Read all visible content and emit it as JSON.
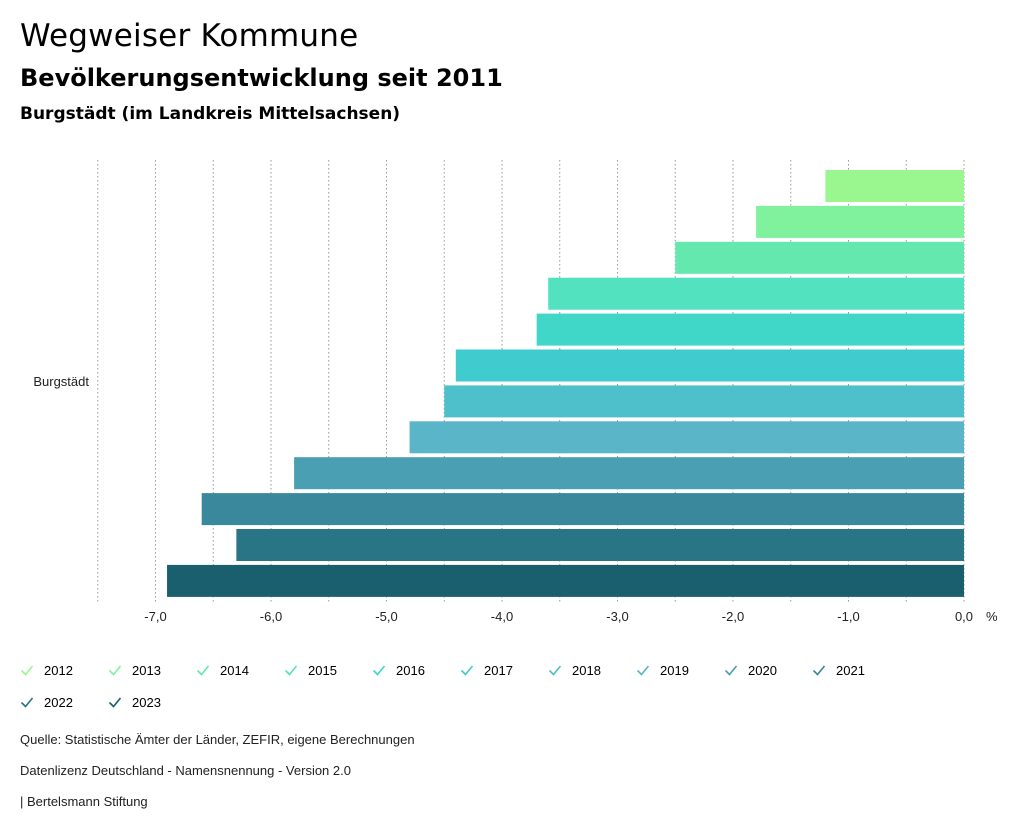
{
  "header": {
    "title": "Wegweiser Kommune",
    "subtitle": "Bevölkerungsentwicklung seit 2011",
    "region": "Burgstädt (im Landkreis Mittelsachsen)"
  },
  "chart_data": {
    "type": "bar",
    "orientation": "horizontal",
    "categories": [
      "Burgstädt"
    ],
    "series": [
      {
        "name": "2012",
        "values": [
          -1.2
        ],
        "color": "#9af78f"
      },
      {
        "name": "2013",
        "values": [
          -1.8
        ],
        "color": "#80f29d"
      },
      {
        "name": "2014",
        "values": [
          -2.5
        ],
        "color": "#64e8ad"
      },
      {
        "name": "2015",
        "values": [
          -3.6
        ],
        "color": "#52e2c0"
      },
      {
        "name": "2016",
        "values": [
          -3.7
        ],
        "color": "#40d7c8"
      },
      {
        "name": "2017",
        "values": [
          -4.4
        ],
        "color": "#40ccce"
      },
      {
        "name": "2018",
        "values": [
          -4.5
        ],
        "color": "#4dc0cc"
      },
      {
        "name": "2019",
        "values": [
          -4.8
        ],
        "color": "#5ab5c8"
      },
      {
        "name": "2020",
        "values": [
          -5.8
        ],
        "color": "#4a9fb3"
      },
      {
        "name": "2021",
        "values": [
          -6.6
        ],
        "color": "#3a889c"
      },
      {
        "name": "2022",
        "values": [
          -6.3
        ],
        "color": "#297585"
      },
      {
        "name": "2023",
        "values": [
          -6.9
        ],
        "color": "#195f6e"
      }
    ],
    "xlim": [
      -7.5,
      0
    ],
    "xticks": [
      -7.0,
      -6.0,
      -5.0,
      -4.0,
      -3.0,
      -2.0,
      -1.0,
      0.0
    ],
    "xtick_labels": [
      "-7,0",
      "-6,0",
      "-5,0",
      "-4,0",
      "-3,0",
      "-2,0",
      "-1,0",
      "0,0"
    ],
    "xunit": "%",
    "grid": true,
    "legend_position": "bottom"
  },
  "footer": {
    "source": "Quelle: Statistische Ämter der Länder, ZEFIR, eigene Berechnungen",
    "license": "Datenlizenz Deutschland - Namensnennung - Version 2.0",
    "publisher": "| Bertelsmann Stiftung"
  }
}
